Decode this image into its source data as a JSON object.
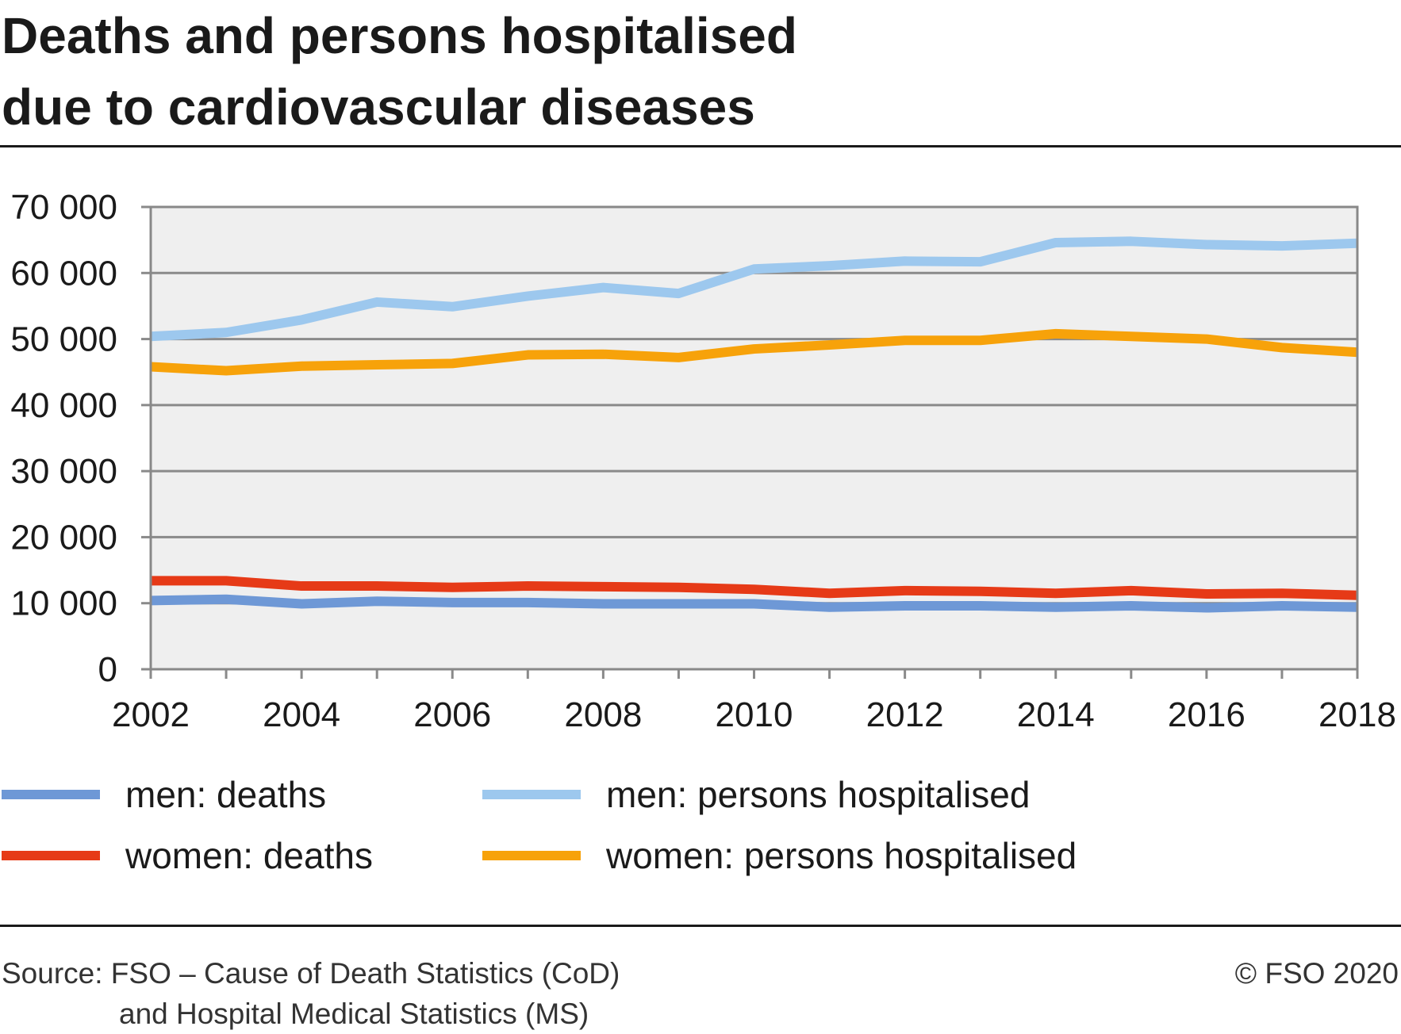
{
  "title_line1": "Deaths and persons hospitalised",
  "title_line2": "due to cardiovascular diseases",
  "source_line1": "Source: FSO – Cause of Death Statistics (CoD)",
  "source_line2": "and Hospital Medical Statistics (MS)",
  "copyright": "© FSO 2020",
  "chart_data": {
    "type": "line",
    "title": "Deaths and persons hospitalised due to cardiovascular diseases",
    "xlabel": "",
    "ylabel": "",
    "x": [
      2002,
      2003,
      2004,
      2005,
      2006,
      2007,
      2008,
      2009,
      2010,
      2011,
      2012,
      2013,
      2014,
      2015,
      2016,
      2017,
      2018
    ],
    "x_ticks": [
      "2002",
      "2004",
      "2006",
      "2008",
      "2010",
      "2012",
      "2014",
      "2016",
      "2018"
    ],
    "y_ticks": [
      "0",
      "10 000",
      "20 000",
      "30 000",
      "40 000",
      "50 000",
      "60 000",
      "70 000"
    ],
    "ylim": [
      0,
      70000
    ],
    "xlim": [
      2002,
      2018
    ],
    "grid": true,
    "legend_position": "bottom",
    "series": [
      {
        "name": "men: deaths",
        "color": "#6e98d6",
        "values": [
          10400,
          10600,
          9900,
          10300,
          10100,
          10100,
          9900,
          9900,
          9900,
          9400,
          9600,
          9600,
          9400,
          9600,
          9300,
          9600,
          9400
        ]
      },
      {
        "name": "men: persons hospitalised",
        "color": "#9dc8ee",
        "values": [
          50400,
          51000,
          52900,
          55600,
          54900,
          56500,
          57800,
          56900,
          60600,
          61100,
          61800,
          61700,
          64600,
          64800,
          64300,
          64100,
          64500
        ]
      },
      {
        "name": "women: deaths",
        "color": "#e63a17",
        "values": [
          13400,
          13400,
          12600,
          12600,
          12400,
          12600,
          12500,
          12400,
          12100,
          11500,
          11900,
          11800,
          11500,
          11900,
          11400,
          11500,
          11200
        ]
      },
      {
        "name": "women: persons hospitalised",
        "color": "#f7a20a",
        "values": [
          45800,
          45200,
          45900,
          46100,
          46300,
          47600,
          47700,
          47200,
          48500,
          49100,
          49800,
          49800,
          50800,
          50400,
          50000,
          48700,
          48000
        ]
      }
    ]
  }
}
